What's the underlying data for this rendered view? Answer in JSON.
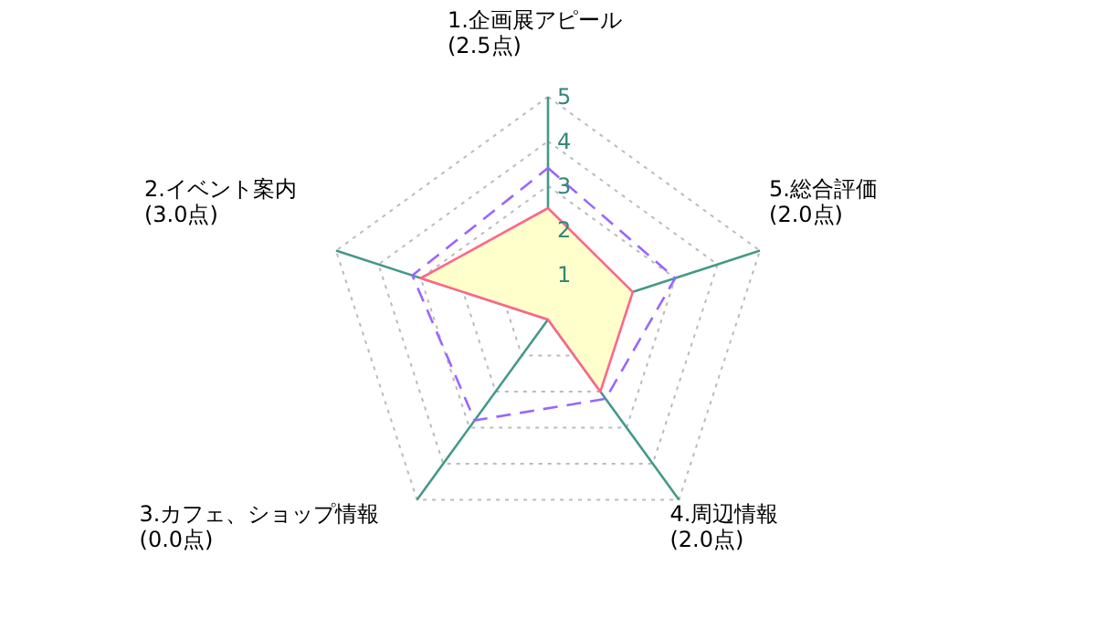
{
  "chart_data": {
    "type": "radar",
    "categories": [
      "1.企画展アピール\n(2.5点)",
      "5.総合評価\n(2.0点)",
      "4.周辺情報\n(2.0点)",
      "3.カフェ、ショップ情報\n(0.0点)",
      "2.イベント案内\n(3.0点)"
    ],
    "ylim": [
      0,
      5
    ],
    "yticks": [
      1,
      2,
      3,
      4,
      5
    ],
    "grid": true,
    "series": [
      {
        "type": "area",
        "color": "#ff6688",
        "values": [
          2.5,
          2.0,
          2.0,
          0.0,
          3.0
        ],
        "line_style": "solid"
      },
      {
        "color": "#9966ff",
        "values": [
          3.4,
          3.0,
          2.2,
          2.8,
          3.2
        ],
        "line_style": "dashed"
      }
    ]
  }
}
